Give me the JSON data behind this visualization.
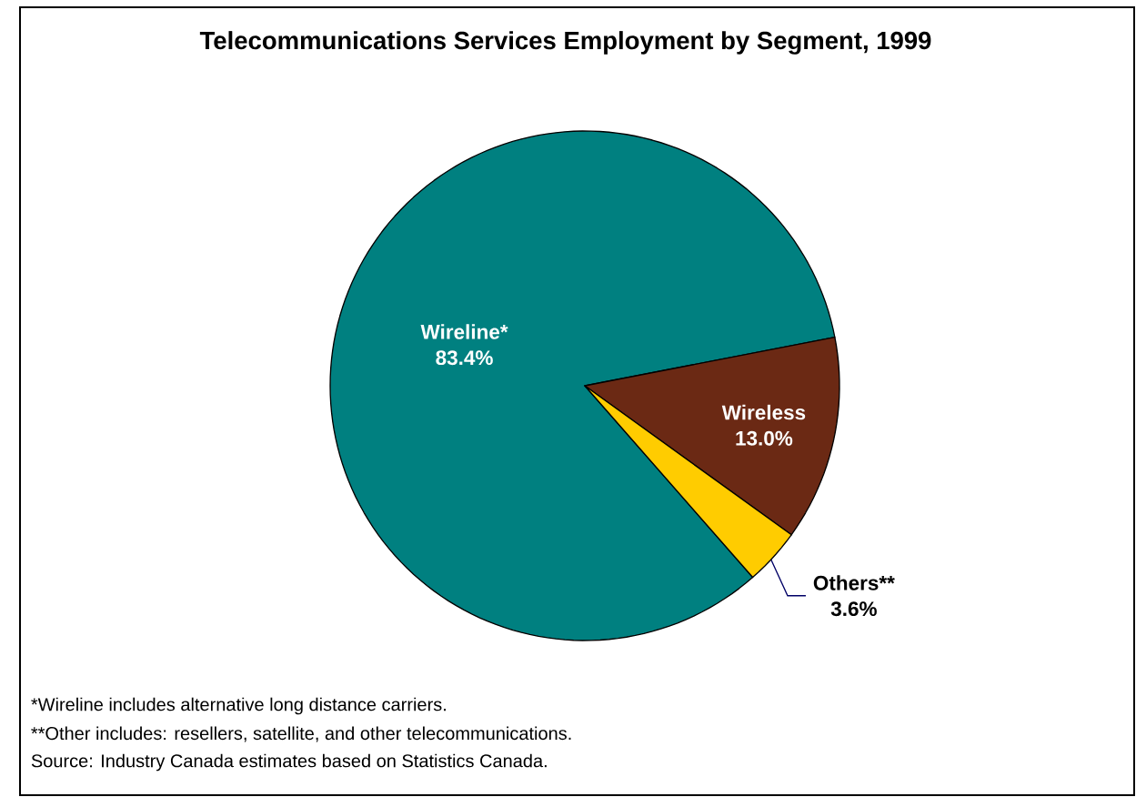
{
  "chart_data": {
    "type": "pie",
    "title": "Telecommunications Services Employment by Segment, 1999",
    "categories": [
      "Wireline*",
      "Wireless",
      "Others**"
    ],
    "values": [
      83.4,
      13.0,
      3.6
    ],
    "value_labels": [
      "83.4%",
      "13.0%",
      "3.6%"
    ],
    "colors": [
      "#008080",
      "#6b2914",
      "#ffcc00"
    ],
    "annotations": [
      "*Wireline includes alternative long distance carriers.",
      "**Other includes: resellers, satellite, and other telecommunications.",
      "Source: Industry Canada estimates based on Statistics Canada."
    ]
  }
}
